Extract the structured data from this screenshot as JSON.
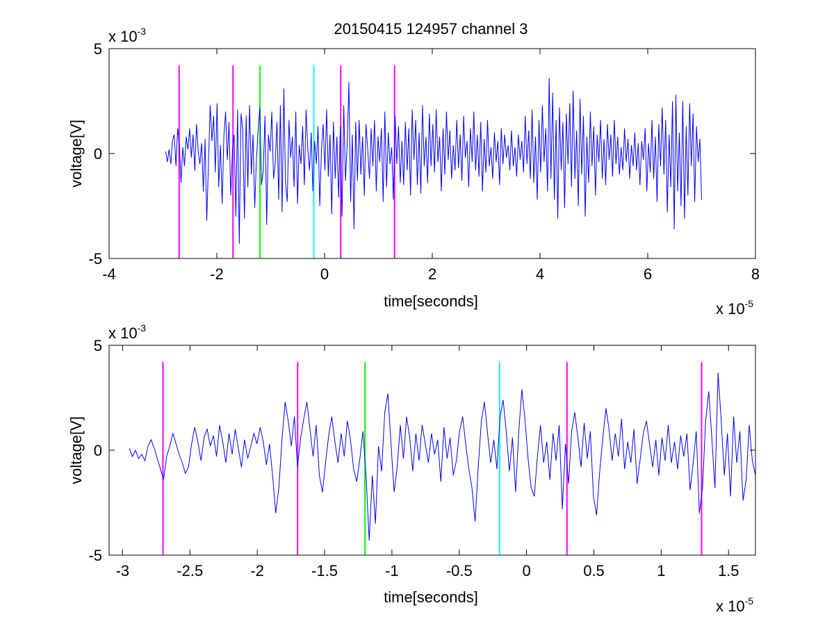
{
  "figure": {
    "title": "20150415 124957 channel 3"
  },
  "chart_data": [
    {
      "type": "line",
      "title": "20150415 124957 channel 3",
      "xlabel": "time[seconds]",
      "ylabel": "voltage[V]",
      "x_multiplier": "x 10",
      "x_exponent": "-5",
      "y_multiplier": "x 10",
      "y_exponent": "-3",
      "xlim": [
        -4,
        8
      ],
      "ylim": [
        -5,
        5
      ],
      "x_units_scale": "1e-5 s",
      "y_units_scale": "1e-3 V",
      "xticks": [
        "-4",
        "-2",
        "0",
        "2",
        "4",
        "6",
        "8"
      ],
      "yticks": [
        "-5",
        "0",
        "5"
      ],
      "grid": false,
      "signal": {
        "color": "#0000ff",
        "x_start": -2.95,
        "x_end": 7.0,
        "y": [
          0.1,
          -0.4,
          0.2,
          -0.5,
          0.6,
          0.9,
          -0.6,
          1.2,
          0.4,
          -1.4,
          0.3,
          -0.6,
          0.8,
          0.2,
          1.2,
          -0.2,
          0.9,
          -0.8,
          1.4,
          0.1,
          -0.5,
          0.5,
          -1.8,
          0.7,
          -3.2,
          -0.4,
          2.3,
          0.6,
          1.8,
          -0.9,
          2.4,
          -1.6,
          0.4,
          -2.4,
          0.8,
          2.0,
          -0.3,
          1.5,
          -2.0,
          0.2,
          0.9,
          -3.0,
          2.1,
          -4.3,
          1.9,
          1.2,
          -3.1,
          1.8,
          -1.6,
          2.3,
          -1.0,
          0.9,
          -2.6,
          -0.3,
          1.1,
          2.2,
          -1.5,
          -0.8,
          1.8,
          -3.4,
          0.9,
          0.1,
          2.0,
          -1.2,
          -0.5,
          1.5,
          -2.2,
          2.3,
          -2.8,
          3.1,
          -1.4,
          -2.3,
          1.6,
          -0.2,
          0.8,
          -1.6,
          2.0,
          -2.4,
          0.4,
          -0.5,
          1.3,
          -1.5,
          2.1,
          0.2,
          -0.8,
          1.0,
          -1.8,
          0.6,
          -0.5,
          1.3,
          -2.5,
          0.2,
          1.4,
          -0.8,
          2.1,
          -1.1,
          0.9,
          -2.9,
          1.5,
          -1.2,
          0.8,
          -2.1,
          1.3,
          -3.0,
          2.3,
          -1.3,
          0.4,
          3.4,
          -2.3,
          0.9,
          -3.6,
          1.5,
          -1.3,
          1.6,
          -1.0,
          0.8,
          -2.0,
          1.4,
          0.2,
          -1.2,
          1.2,
          -0.6,
          1.6,
          -1.8,
          0.8,
          -0.4,
          1.2,
          -2.3,
          2.0,
          -1.6,
          1.0,
          -0.5,
          0.3,
          -2.2,
          1.8,
          -0.5,
          1.3,
          -1.4,
          0.6,
          -1.5,
          1.5,
          -0.8,
          1.2,
          -2.0,
          2.1,
          -0.3,
          1.6,
          -1.5,
          1.0,
          -1.9,
          2.3,
          -0.6,
          0.8,
          -1.4,
          1.9,
          -0.6,
          1.4,
          -0.9,
          2.1,
          -0.4,
          0.8,
          -1.8,
          1.2,
          -1.0,
          2.0,
          -0.3,
          1.1,
          -1.2,
          0.4,
          -0.8,
          1.6,
          -0.7,
          0.9,
          -1.3,
          1.8,
          -0.2,
          0.6,
          -1.6,
          1.2,
          -0.4,
          2.0,
          -0.8,
          0.9,
          -1.1,
          1.5,
          -1.8,
          0.7,
          -0.9,
          1.6,
          -0.6,
          0.3,
          -1.2,
          1.0,
          -0.4,
          0.6,
          -1.5,
          1.2,
          -0.5,
          0.9,
          -0.2,
          0.4,
          -0.8,
          1.1,
          -0.6,
          0.3,
          -1.1,
          0.9,
          -0.3,
          0.6,
          -0.9,
          1.8,
          -0.5,
          1.1,
          -1.2,
          2.1,
          -1.4,
          0.8,
          -2.2,
          1.6,
          -0.9,
          2.3,
          -0.4,
          1.2,
          -1.8,
          3.6,
          -1.2,
          2.9,
          -2.2,
          1.6,
          -3.1,
          2.2,
          -0.8,
          1.5,
          -2.6,
          1.9,
          -0.5,
          2.4,
          -1.6,
          3.0,
          -1.2,
          1.1,
          -2.5,
          2.6,
          -1.0,
          1.8,
          -3.0,
          0.8,
          -1.4,
          2.0,
          -0.6,
          1.3,
          -2.0,
          0.9,
          -0.4,
          1.6,
          -1.2,
          0.7,
          -1.5,
          1.4,
          -0.3,
          0.9,
          -1.1,
          1.6,
          -0.5,
          0.8,
          -1.0,
          0.3,
          -0.8,
          1.2,
          -0.4,
          0.7,
          -1.2,
          0.4,
          -0.6,
          1.0,
          -0.8,
          0.5,
          -1.5,
          0.6,
          -0.3,
          1.2,
          -1.8,
          0.5,
          -0.9,
          1.6,
          -1.2,
          0.8,
          -2.3,
          1.4,
          -0.6,
          2.2,
          -1.0,
          1.6,
          -2.8,
          0.9,
          -1.6,
          2.5,
          -3.6,
          2.8,
          -1.8,
          1.0,
          -2.5,
          2.5,
          -3.1,
          1.3,
          -2.0,
          2.4,
          -0.6,
          1.9,
          -2.3,
          1.3,
          -0.4,
          0.7,
          -2.2
        ]
      },
      "markers": [
        {
          "x": -2.7,
          "color": "#ff00ff"
        },
        {
          "x": -1.7,
          "color": "#ff00ff"
        },
        {
          "x": -1.2,
          "color": "#00ff00"
        },
        {
          "x": -0.2,
          "color": "#00ffff"
        },
        {
          "x": 0.3,
          "color": "#ff00ff"
        },
        {
          "x": 1.3,
          "color": "#ff00ff"
        }
      ],
      "marker_range": [
        -5,
        4.2
      ]
    },
    {
      "type": "line",
      "title": "",
      "xlabel": "time[seconds]",
      "ylabel": "voltage[V]",
      "x_multiplier": "x 10",
      "x_exponent": "-5",
      "y_multiplier": "x 10",
      "y_exponent": "-3",
      "xlim": [
        -3.1,
        1.7
      ],
      "ylim": [
        -5,
        5
      ],
      "xticks": [
        "-3",
        "-2.5",
        "-2",
        "-1.5",
        "-1",
        "-0.5",
        "0",
        "0.5",
        "1",
        "1.5"
      ],
      "yticks": [
        "-5",
        "0",
        "5"
      ],
      "grid": false,
      "signal": {
        "color": "#0000ff",
        "x_start": -2.95,
        "x_end": 1.7,
        "y": [
          0.1,
          -0.3,
          0.0,
          -0.4,
          -0.2,
          -0.5,
          0.2,
          0.5,
          0.1,
          -0.4,
          -0.9,
          -1.4,
          -0.3,
          0.2,
          0.8,
          0.3,
          -0.2,
          -0.6,
          -1.1,
          -0.8,
          0.3,
          1.1,
          0.4,
          -0.5,
          0.6,
          1.0,
          0.2,
          0.7,
          -0.3,
          1.2,
          0.4,
          -0.6,
          0.8,
          -0.2,
          1.0,
          0.1,
          -0.8,
          0.5,
          -0.4,
          0.2,
          0.8,
          0.3,
          1.1,
          0.4,
          -0.7,
          0.3,
          -1.2,
          -3.0,
          -1.8,
          0.5,
          2.3,
          1.4,
          0.2,
          1.6,
          -0.8,
          0.6,
          1.5,
          2.3,
          1.0,
          -0.3,
          1.2,
          -1.2,
          -2.0,
          -0.6,
          0.7,
          1.6,
          0.4,
          -0.6,
          0.8,
          -0.3,
          1.4,
          0.5,
          -0.9,
          -1.5,
          -0.4,
          0.9,
          -1.2,
          -4.3,
          -1.2,
          -3.5,
          0.2,
          -1.0,
          1.8,
          2.7,
          0.3,
          -2.0,
          -0.8,
          1.2,
          -0.4,
          1.6,
          0.6,
          -1.0,
          0.8,
          -0.5,
          1.2,
          0.3,
          -0.6,
          0.8,
          -0.2,
          0.5,
          -1.5,
          1.1,
          -0.4,
          0.6,
          -1.2,
          -0.5,
          0.9,
          1.6,
          0.3,
          -0.9,
          -1.8,
          -3.4,
          -0.8,
          1.4,
          2.3,
          0.8,
          -0.6,
          0.5,
          -0.9,
          1.6,
          2.4,
          0.9,
          -1.0,
          0.6,
          -2.0,
          0.8,
          2.9,
          1.5,
          -0.4,
          -1.8,
          -2.2,
          -0.3,
          1.2,
          -0.6,
          0.4,
          -1.4,
          0.8,
          -0.5,
          1.2,
          -2.8,
          0.3,
          -1.6,
          0.9,
          1.8,
          0.6,
          -0.8,
          1.3,
          -0.4,
          0.9,
          -2.2,
          -3.1,
          -1.0,
          0.6,
          2.0,
          1.0,
          -0.5,
          0.8,
          -0.3,
          1.5,
          -0.9,
          0.4,
          -0.6,
          1.0,
          -1.6,
          -0.4,
          0.8,
          1.4,
          0.3,
          -0.8,
          0.5,
          -1.2,
          0.6,
          -0.5,
          1.2,
          -0.6,
          0.4,
          -0.9,
          0.7,
          -0.3,
          0.8,
          -1.9,
          -0.6,
          0.9,
          -3.0,
          -1.8,
          1.4,
          2.8,
          0.6,
          -1.8,
          3.7,
          1.4,
          -1.2,
          0.8,
          -2.2,
          1.6,
          -0.6,
          0.9,
          -2.4,
          -1.4,
          1.2,
          -0.5,
          -1.2
        ]
      },
      "markers": [
        {
          "x": -2.7,
          "color": "#ff00ff"
        },
        {
          "x": -1.7,
          "color": "#ff00ff"
        },
        {
          "x": -1.2,
          "color": "#00ff00"
        },
        {
          "x": -0.2,
          "color": "#00ffff"
        },
        {
          "x": 0.3,
          "color": "#ff00ff"
        },
        {
          "x": 1.3,
          "color": "#ff00ff"
        }
      ],
      "marker_range": [
        -5,
        4.2
      ]
    }
  ]
}
